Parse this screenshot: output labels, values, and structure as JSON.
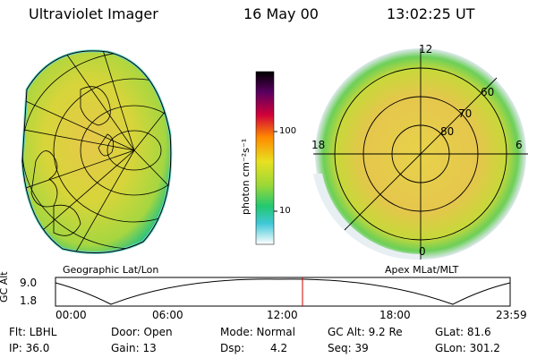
{
  "header": {
    "title": "Ultraviolet Imager",
    "date": "16 May 00",
    "time": "13:02:25 UT"
  },
  "colorbar": {
    "unit_label": "photon cm⁻²s⁻¹",
    "tick_100": "100",
    "tick_10": "10"
  },
  "left_panel": {
    "caption": "Geographic Lat/Lon"
  },
  "right_panel": {
    "caption": "Apex MLat/MLT",
    "mlt_12": "12",
    "mlt_18": "18",
    "mlt_6": "6",
    "mlt_0": "0",
    "lat_60": "60",
    "lat_70": "70",
    "lat_80": "80"
  },
  "orbit": {
    "y_axis_label": "GC Alt",
    "y_max": "9.0",
    "y_min": "1.8",
    "time_ticks": [
      "00:00",
      "06:00",
      "12:00",
      "18:00",
      "23:59"
    ],
    "current_time_fraction": 0.5434
  },
  "status": {
    "filter": "Flt: LBHL",
    "ip": "IP: 36.0",
    "door": "Door: Open",
    "gain": "Gain: 13",
    "mode": "Mode: Normal",
    "dsp_label": "Dsp:",
    "dsp_value": "4.2",
    "gc_alt": "GC Alt: 9.2 Re",
    "seq": "Seq: 39",
    "glat": "GLat: 81.6",
    "glon": "GLon: 301.2"
  }
}
